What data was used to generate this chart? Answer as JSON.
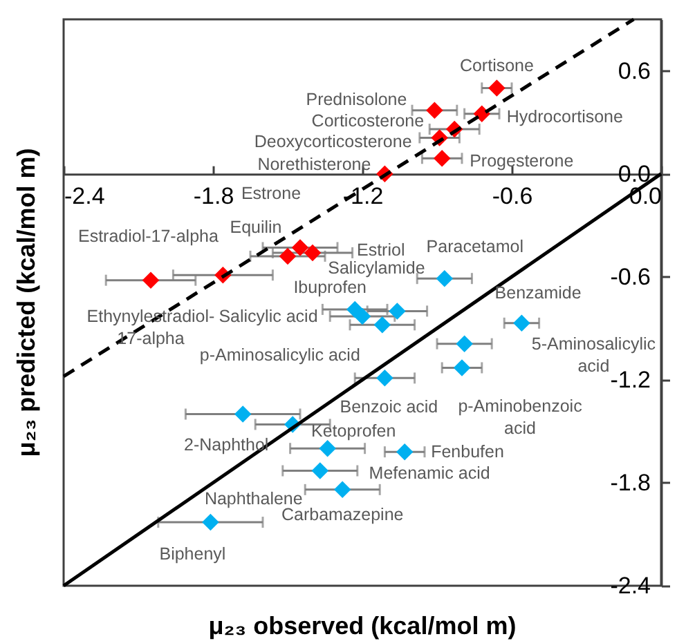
{
  "chart_data": {
    "type": "scatter",
    "xlabel": "μ₂₃ observed (kcal/mol m)",
    "ylabel": "μ₂₃ predicted (kcal/mol m)",
    "grid": false,
    "xlim": [
      -2.4,
      0
    ],
    "xticks": [
      -2.4,
      -1.8,
      -1.2,
      -0.6,
      {
        "value": 0,
        "label": "0.0"
      }
    ],
    "ylim": [
      -2.4,
      0.9
    ],
    "yticks": [
      0.6,
      {
        "value": 0,
        "label": "0.0"
      },
      -0.6,
      -1.2,
      -1.8,
      -2.4
    ],
    "series": [
      {
        "type": "scatter",
        "marker": "diamond",
        "color": "#ff0000",
        "x": [
          -0.66,
          -0.91,
          -0.72,
          -0.83,
          -0.89,
          -0.88,
          -1.11,
          -1.45,
          -1.5,
          -1.4,
          -1.76,
          -2.05
        ],
        "values": [
          0.5,
          0.37,
          0.35,
          0.26,
          0.21,
          0.09,
          0.0,
          -0.43,
          -0.48,
          -0.46,
          -0.59,
          -0.62
        ],
        "xerrors": [
          0.06,
          0.09,
          0.07,
          0.1,
          0.08,
          0.08,
          null,
          0.15,
          0.15,
          0.16,
          0.2,
          0.18
        ]
      },
      {
        "type": "scatter",
        "marker": "diamond",
        "color": "#00b0f0",
        "x": [
          -0.87,
          -1.06,
          -1.23,
          -1.2,
          -1.12,
          -0.79,
          -0.56,
          -0.8,
          -1.11,
          -1.68,
          -1.48,
          -1.34,
          -1.03,
          -1.37,
          -1.28,
          -1.81
        ],
        "values": [
          -0.61,
          -0.8,
          -0.79,
          -0.83,
          -0.88,
          -0.99,
          -0.87,
          -1.13,
          -1.19,
          -1.4,
          -1.46,
          -1.6,
          -1.62,
          -1.73,
          -1.84,
          -2.03
        ],
        "xerrors": [
          0.11,
          0.12,
          0.13,
          0.13,
          0.13,
          0.11,
          0.07,
          0.08,
          0.12,
          0.23,
          0.15,
          0.15,
          0.08,
          0.15,
          0.15,
          0.21
        ]
      },
      {
        "type": "line",
        "color": "#000000",
        "line_style": "solid",
        "x": [
          -2.4,
          0
        ],
        "values": [
          -2.4,
          0
        ]
      },
      {
        "type": "line",
        "color": "#000000",
        "line_style": "dashed",
        "x": [
          -2.4,
          -0.11
        ],
        "values": [
          -1.18,
          0.9
        ]
      }
    ],
    "annotations": [
      {
        "text": "Cortisone",
        "x": -0.66,
        "y": 0.5
      },
      {
        "text": "Prednisolone",
        "x": -0.91,
        "y": 0.37
      },
      {
        "text": "Hydrocortisone",
        "x": -0.72,
        "y": 0.35
      },
      {
        "text": "Corticosterone",
        "x": -0.83,
        "y": 0.26
      },
      {
        "text": "Deoxycorticosterone",
        "x": -0.89,
        "y": 0.21
      },
      {
        "text": "Progesterone",
        "x": -0.88,
        "y": 0.09
      },
      {
        "text": "Norethisterone",
        "x": -1.11,
        "y": 0.0
      },
      {
        "text": "Estrone",
        "x": -1.45,
        "y": -0.43
      },
      {
        "text": "Equilin",
        "x": -1.5,
        "y": -0.48
      },
      {
        "text": "Estriol",
        "x": -1.4,
        "y": -0.46
      },
      {
        "text": "Estradiol-17-alpha",
        "x": -1.76,
        "y": -0.59
      },
      {
        "text": "Ethynylestradiol-17-alpha",
        "x": -2.05,
        "y": -0.62
      },
      {
        "text": "Paracetamol",
        "x": -0.87,
        "y": -0.61
      },
      {
        "text": "Salicylamide",
        "x": -1.06,
        "y": -0.8
      },
      {
        "text": "Ibuprofen",
        "x": -1.23,
        "y": -0.79
      },
      {
        "text": "Salicylic acid",
        "x": -1.2,
        "y": -0.83
      },
      {
        "text": "p-Aminosalicylic acid",
        "x": -1.12,
        "y": -0.88
      },
      {
        "text": "Benzamide",
        "x": -0.79,
        "y": -0.99
      },
      {
        "text": "5-Aminosalicylic acid",
        "x": -0.56,
        "y": -0.87
      },
      {
        "text": "p-Aminobenzoic acid",
        "x": -0.8,
        "y": -1.13
      },
      {
        "text": "Benzoic acid",
        "x": -1.11,
        "y": -1.19
      },
      {
        "text": "2-Naphthol",
        "x": -1.68,
        "y": -1.4
      },
      {
        "text": "Ketoprofen",
        "x": -1.48,
        "y": -1.46
      },
      {
        "text": "Mefenamic acid",
        "x": -1.34,
        "y": -1.6
      },
      {
        "text": "Fenbufen",
        "x": -1.03,
        "y": -1.62
      },
      {
        "text": "Naphthalene",
        "x": -1.37,
        "y": -1.73
      },
      {
        "text": "Carbamazepine",
        "x": -1.28,
        "y": -1.84
      },
      {
        "text": "Biphenyl",
        "x": -1.81,
        "y": -2.03
      }
    ]
  }
}
